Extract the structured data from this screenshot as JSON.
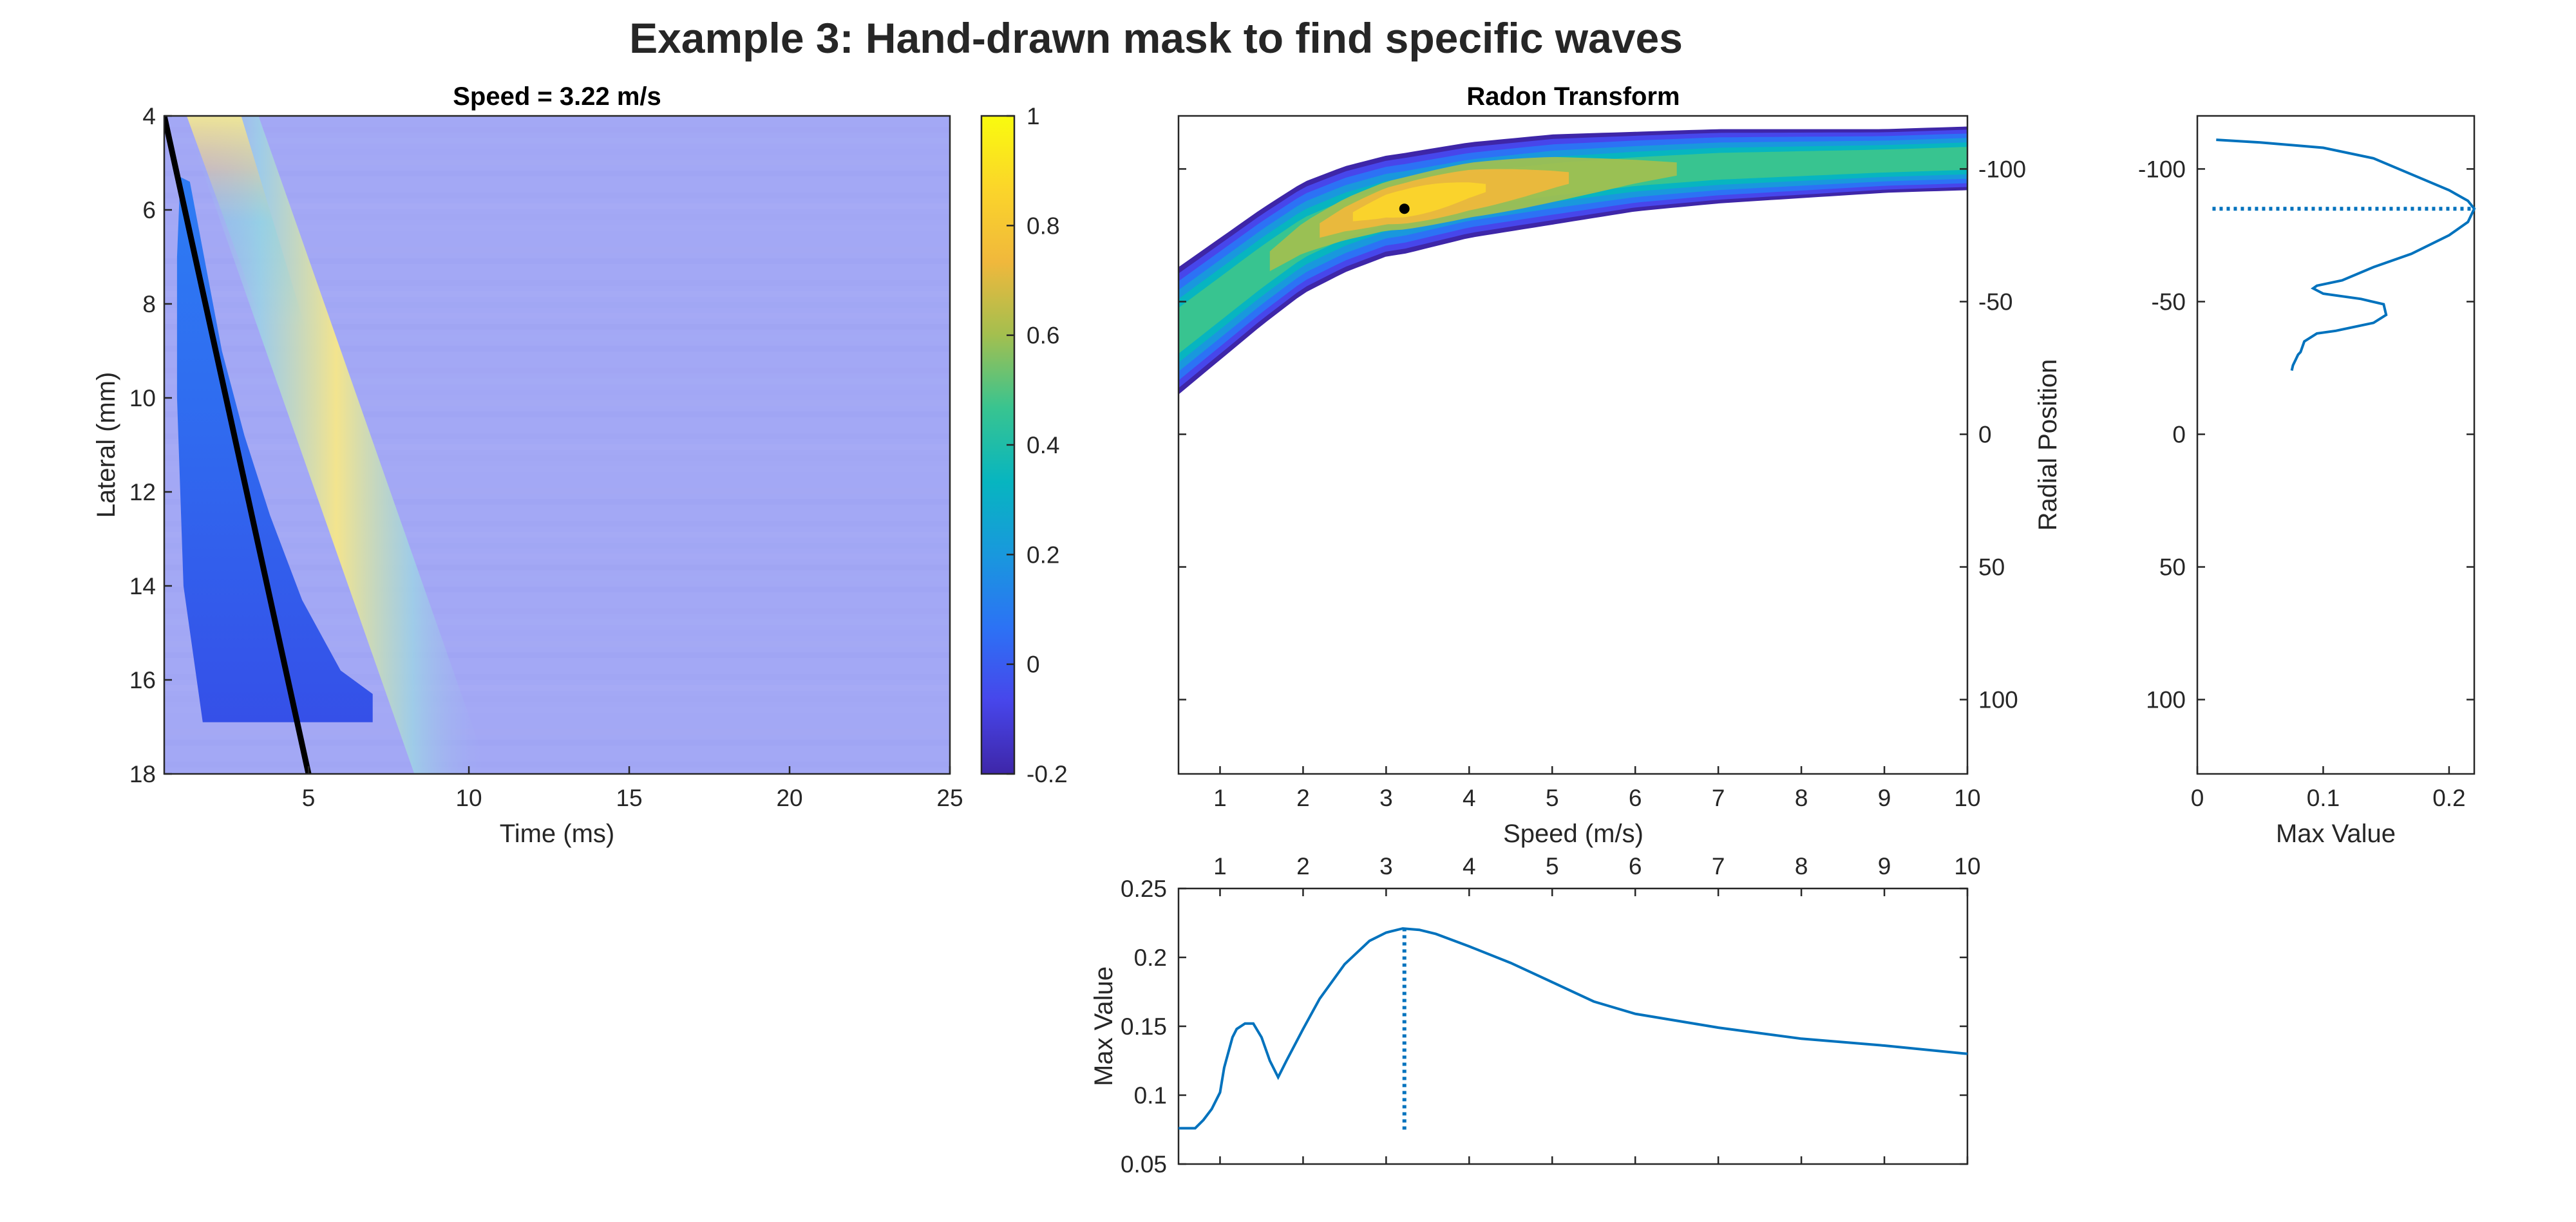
{
  "figure": {
    "title": "Example 3: Hand-drawn mask to find specific waves"
  },
  "colors": {
    "line": "#0072BD",
    "axis": "#262626",
    "background_field": "#A3A8F5",
    "parula": [
      "#3E26A8",
      "#4746EB",
      "#2C72F5",
      "#1998DD",
      "#07B5C0",
      "#38C490",
      "#A3BF4F",
      "#F0B83C",
      "#FBD52A",
      "#F9FB0E"
    ]
  },
  "chart_data": [
    {
      "id": "speed-map",
      "type": "heatmap",
      "title": "Speed = 3.22 m/s",
      "xlabel": "Time (ms)",
      "ylabel": "Lateral (mm)",
      "xlim": [
        0.5,
        25
      ],
      "ylim": [
        18,
        4
      ],
      "xticks": [
        5,
        10,
        15,
        20,
        25
      ],
      "yticks": [
        4,
        6,
        8,
        10,
        12,
        14,
        16,
        18
      ],
      "fit_line": {
        "x": [
          0.5,
          5.0
        ],
        "y": [
          4.0,
          18.0
        ]
      },
      "mask_polygon": [
        [
          1.0,
          5.3
        ],
        [
          1.3,
          5.4
        ],
        [
          1.8,
          7.2
        ],
        [
          2.3,
          9.0
        ],
        [
          3.0,
          10.8
        ],
        [
          3.8,
          12.5
        ],
        [
          4.8,
          14.3
        ],
        [
          6.0,
          15.8
        ],
        [
          7.0,
          16.3
        ],
        [
          7.0,
          16.9
        ],
        [
          1.7,
          16.9
        ],
        [
          1.1,
          14.0
        ],
        [
          0.9,
          10.0
        ],
        [
          0.9,
          7.0
        ]
      ],
      "wave_band": {
        "center_start": [
          2.0,
          4.0
        ],
        "center_end": [
          9.2,
          18.0
        ]
      }
    },
    {
      "id": "colorbar",
      "type": "colorbar",
      "range": [
        -0.2,
        1
      ],
      "ticks": [
        "1",
        "0.8",
        "0.6",
        "0.4",
        "0.2",
        "0",
        "-0.2"
      ]
    },
    {
      "id": "radon",
      "type": "heatmap",
      "title": "Radon Transform",
      "xlabel": "Speed (m/s)",
      "ylabel": "Radial Position",
      "xlim": [
        0.5,
        10
      ],
      "ylim": [
        -120,
        128
      ],
      "xticks": [
        1,
        2,
        3,
        4,
        5,
        6,
        7,
        8,
        9,
        10
      ],
      "yticks": [
        -100,
        -50,
        0,
        50,
        100
      ],
      "peak_marker": {
        "x": 3.22,
        "y": -85
      },
      "ridge": {
        "x": [
          0.5,
          1.0,
          1.5,
          2.0,
          2.5,
          3.0,
          3.22,
          4.0,
          5.0,
          6.0,
          7.0,
          8.0,
          9.0,
          10.0
        ],
        "center": [
          -39,
          -51,
          -63,
          -74,
          -81,
          -86,
          -87,
          -92,
          -96,
          -99,
          -101,
          -102,
          -103,
          -104
        ],
        "half_width": [
          24,
          23,
          22,
          21,
          20,
          19,
          19,
          18,
          17,
          15,
          14,
          13,
          12,
          12
        ]
      }
    },
    {
      "id": "max-vs-position",
      "type": "line",
      "xlabel": "Max Value",
      "xlim": [
        0,
        0.22
      ],
      "ylim": [
        -120,
        128
      ],
      "xticks": [
        "0",
        "0.1",
        "0.2"
      ],
      "yticks": [
        -100,
        -50,
        0,
        50,
        100
      ],
      "peak_line": {
        "y": -85,
        "x": [
          0.012,
          0.22
        ]
      },
      "series": [
        {
          "x": [
            0.015,
            0.05,
            0.1,
            0.14,
            0.17,
            0.2,
            0.215,
            0.22,
            0.215,
            0.2,
            0.17,
            0.14,
            0.115,
            0.095,
            0.092,
            0.1,
            0.13,
            0.148,
            0.15,
            0.14,
            0.11,
            0.095,
            0.085,
            0.082,
            0.08,
            0.078,
            0.076,
            0.075
          ],
          "y": [
            -111,
            -110,
            -108,
            -104,
            -98,
            -92,
            -88,
            -85,
            -80,
            -75,
            -68,
            -63,
            -58,
            -56,
            -55,
            -53,
            -51,
            -49,
            -45,
            -42,
            -39,
            -38,
            -35,
            -31,
            -30,
            -28,
            -26,
            -24
          ]
        }
      ]
    },
    {
      "id": "max-vs-speed",
      "type": "line",
      "ylabel": "Max Value",
      "xlim": [
        0.5,
        10
      ],
      "ylim": [
        0.05,
        0.25
      ],
      "xticks": [
        1,
        2,
        3,
        4,
        5,
        6,
        7,
        8,
        9,
        10
      ],
      "yticks": [
        "0.25",
        "0.2",
        "0.15",
        "0.1",
        "0.05"
      ],
      "peak_line": {
        "x": 3.22,
        "y": [
          0.075,
          0.22
        ]
      },
      "series": [
        {
          "x": [
            0.5,
            0.7,
            0.8,
            0.9,
            1.0,
            1.05,
            1.15,
            1.2,
            1.3,
            1.4,
            1.5,
            1.6,
            1.7,
            1.8,
            2.0,
            2.2,
            2.5,
            2.8,
            3.0,
            3.2,
            3.4,
            3.6,
            4.0,
            4.5,
            5.0,
            5.5,
            6.0,
            7.0,
            8.0,
            9.0,
            10.0
          ],
          "y": [
            0.076,
            0.076,
            0.082,
            0.09,
            0.102,
            0.12,
            0.142,
            0.148,
            0.152,
            0.152,
            0.142,
            0.125,
            0.113,
            0.125,
            0.148,
            0.17,
            0.195,
            0.212,
            0.218,
            0.221,
            0.22,
            0.217,
            0.208,
            0.196,
            0.182,
            0.168,
            0.159,
            0.149,
            0.141,
            0.136,
            0.13
          ]
        }
      ]
    }
  ]
}
